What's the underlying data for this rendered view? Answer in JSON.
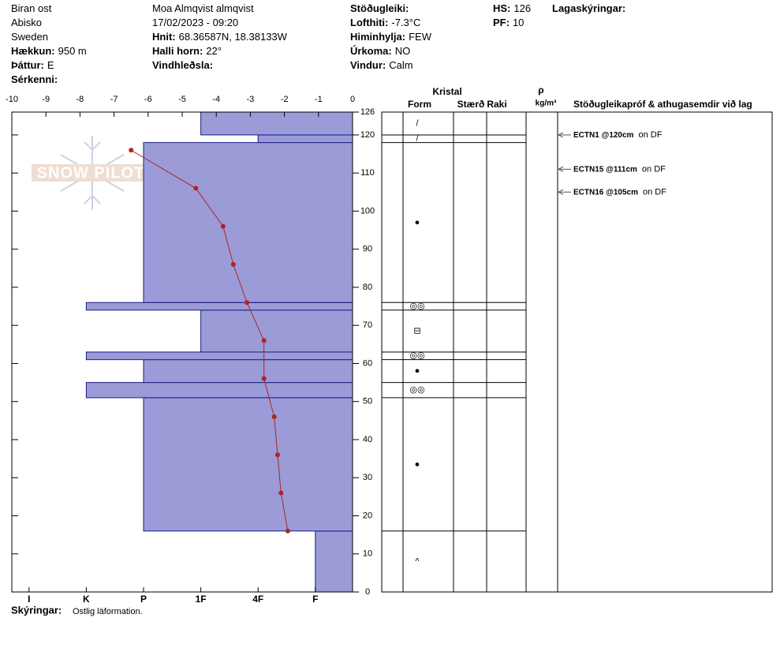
{
  "chart_data": {
    "type": "snow_profile",
    "header": [
      [
        {
          "value": "Biran ost"
        },
        {
          "value": "Abisko"
        },
        {
          "value": "Sweden"
        },
        {
          "label": "Hækkun:",
          "value": "950 m"
        },
        {
          "label": "Þáttur:",
          "value": "E"
        },
        {
          "label": "Sérkenni:"
        }
      ],
      [
        {
          "value": "Moa Almqvist almqvist"
        },
        {
          "value": "17/02/2023 - 09:20"
        },
        {
          "label": "Hnit:",
          "value": "68.36587N, 18.38133W"
        },
        {
          "label": "Halli horn:",
          "value": "22°"
        },
        {
          "label": "Vindhleðsla:"
        }
      ],
      [
        {
          "label": "Stöðugleiki:"
        },
        {
          "label": "Lofthiti:",
          "value": "-7.3°C"
        },
        {
          "label": "Himinhylja:",
          "value": "FEW"
        },
        {
          "label": "Úrkoma:",
          "value": "NO"
        },
        {
          "label": "Vindur:",
          "value": "Calm"
        }
      ],
      [
        {
          "label": "HS:",
          "value": "126"
        },
        {
          "label": "PF:",
          "value": "10"
        }
      ],
      [
        {
          "label": "Lagaskýringar:"
        }
      ]
    ],
    "watermark": "SNOW PILOT",
    "xlim": [
      -10,
      0
    ],
    "xticks": [
      -10,
      -9,
      -8,
      -7,
      -6,
      -5,
      -4,
      -3,
      -2,
      -1,
      0
    ],
    "ylim": [
      0,
      126
    ],
    "yticks": [
      0,
      10,
      20,
      30,
      40,
      50,
      60,
      70,
      80,
      90,
      100,
      110,
      120,
      126
    ],
    "hardness_lim": [
      6.3,
      0.35
    ],
    "hardness_ticks": [
      {
        "value": 6,
        "label": "I"
      },
      {
        "value": 5,
        "label": "K"
      },
      {
        "value": 4,
        "label": "P"
      },
      {
        "value": 3,
        "label": "1F"
      },
      {
        "value": 2,
        "label": "4F"
      },
      {
        "value": 1,
        "label": "F"
      }
    ],
    "layer_color": "#9b9bd7",
    "layers": [
      {
        "bottom": 0,
        "top": 16,
        "hardness": 1,
        "form": "^"
      },
      {
        "bottom": 16,
        "top": 51,
        "hardness": 4,
        "form": "●"
      },
      {
        "bottom": 51,
        "top": 55,
        "hardness": 5,
        "form": "◎◎"
      },
      {
        "bottom": 55,
        "top": 61,
        "hardness": 4,
        "form": "●"
      },
      {
        "bottom": 61,
        "top": 63,
        "hardness": 5,
        "form": "◎◎"
      },
      {
        "bottom": 63,
        "top": 74,
        "hardness": 3,
        "form": "⊟"
      },
      {
        "bottom": 74,
        "top": 76,
        "hardness": 5,
        "form": "◎◎"
      },
      {
        "bottom": 76,
        "top": 118,
        "hardness": 4,
        "form": "●"
      },
      {
        "bottom": 118,
        "top": 120,
        "hardness": 2,
        "form": "/"
      },
      {
        "bottom": 120,
        "top": 126,
        "hardness": 3,
        "form": "/"
      }
    ],
    "temperature": {
      "color": "#b22222",
      "heights": [
        116,
        106,
        96,
        86,
        76,
        66,
        56,
        46,
        36,
        26,
        16
      ],
      "values": [
        -6.5,
        -4.6,
        -3.8,
        -3.5,
        -3.1,
        -2.6,
        -2.6,
        -2.3,
        -2.2,
        -2.1,
        -1.9
      ]
    },
    "tests": [
      {
        "height": 120,
        "label": "ECTN1 @120cm",
        "note": "on DF"
      },
      {
        "height": 111,
        "label": "ECTN15 @111cm",
        "note": "on DF"
      },
      {
        "height": 105,
        "label": "ECTN16 @105cm",
        "note": "on DF"
      }
    ],
    "columns": {
      "crystal": "Kristal",
      "form": "Form",
      "size": "Stærð",
      "moisture": "Raki",
      "density": "ρ",
      "density_unit": "kg/m³",
      "tests": "Stöðugleikapróf & athugasemdir við lag"
    },
    "notes": {
      "label": "Skýringar:",
      "value": "Ostlig läformation."
    }
  }
}
